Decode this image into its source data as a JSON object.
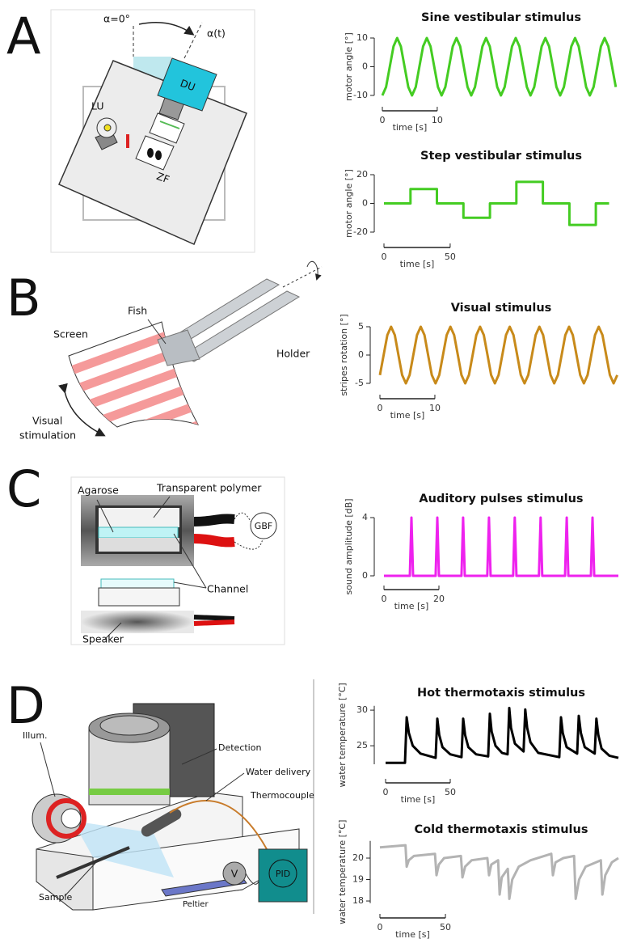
{
  "panel_labels": [
    "A",
    "B",
    "C",
    "D"
  ],
  "diagrams": {
    "a": {
      "angle_zero": "α=0°",
      "angle_t": "α(t)",
      "du": "DU",
      "lu": "LU",
      "zf": "ZF"
    },
    "b": {
      "fish": "Fish",
      "screen": "Screen",
      "holder": "Holder",
      "stimulation": [
        "Visual",
        "stimulation"
      ]
    },
    "c": {
      "agarose": "Agarose",
      "polymer": "Transparent polymer",
      "gbf": "GBF",
      "channel": "Channel",
      "speaker": "Speaker"
    },
    "d": {
      "illum": "Illum.",
      "detection": "Detection",
      "water": "Water delivery",
      "thermocouple": "Thermocouple",
      "pid": "PID",
      "v": "V",
      "sample": "Sample",
      "peltier": "Peltier"
    }
  },
  "chart_data": [
    {
      "type": "line",
      "title": "Sine vestibular stimulus",
      "ylabel": "motor angle [°]",
      "xlabel": "time [s]",
      "color": "#44cc22",
      "x": [
        0,
        0.675,
        1.35,
        2.025,
        2.7,
        3.375,
        4.05,
        4.725,
        5.4,
        6.075,
        6.75,
        7.425,
        8.1,
        8.775,
        9.45,
        10.125,
        10.8,
        11.475,
        12.15,
        12.825,
        13.5,
        14.175,
        14.85,
        15.525,
        16.2,
        16.875,
        17.55,
        18.225,
        18.9,
        19.575,
        20.25,
        20.925,
        21.6,
        22.275,
        22.95,
        23.625,
        24.3,
        24.975,
        25.65,
        26.325,
        27,
        27.675,
        28.35,
        29.025,
        29.7,
        30.375,
        31.05,
        31.725,
        32.4,
        33.075,
        33.75,
        34.425,
        35.1,
        35.775,
        36.45,
        37.125,
        37.8,
        38.475,
        39.15,
        39.825,
        40.5,
        41.175,
        41.85,
        42.525
      ],
      "values": [
        -10,
        -7.07,
        0,
        7.07,
        10,
        7.07,
        0,
        -7.07,
        -10,
        -7.07,
        0,
        7.07,
        10,
        7.07,
        0,
        -7.07,
        -10,
        -7.07,
        0,
        7.07,
        10,
        7.07,
        0,
        -7.07,
        -10,
        -7.07,
        0,
        7.07,
        10,
        7.07,
        0,
        -7.07,
        -10,
        -7.07,
        0,
        7.07,
        10,
        7.07,
        0,
        -7.07,
        -10,
        -7.07,
        0,
        7.07,
        10,
        7.07,
        0,
        -7.07,
        -10,
        -7.07,
        0,
        7.07,
        10,
        7.07,
        0,
        -7.07,
        -10,
        -7.07,
        0,
        7.07,
        10,
        7.07,
        0,
        -7.07
      ],
      "xlim": [
        0,
        43
      ],
      "ylim": [
        -10,
        10
      ],
      "yticks": [
        -10,
        0,
        10
      ],
      "xticks": [
        0,
        10
      ]
    },
    {
      "type": "step",
      "title": "Step vestibular stimulus",
      "ylabel": "motor angle [°]",
      "xlabel": "time [s]",
      "color": "#44cc22",
      "x": [
        0,
        20,
        40,
        60,
        80,
        100,
        120,
        140,
        160,
        170
      ],
      "values": [
        0,
        10,
        0,
        -10,
        0,
        15,
        0,
        -15,
        0,
        0
      ],
      "xlim": [
        0,
        177
      ],
      "ylim": [
        -20,
        20
      ],
      "yticks": [
        -20,
        0,
        20
      ],
      "xticks": [
        0,
        50
      ]
    },
    {
      "type": "line",
      "title": "Visual stimulus",
      "ylabel": "stripes rotation [°]",
      "xlabel": "time [s]",
      "color": "#c88a1a",
      "x": [
        0,
        0.675,
        1.35,
        2.025,
        2.7,
        3.375,
        4.05,
        4.725,
        5.4,
        6.075,
        6.75,
        7.425,
        8.1,
        8.775,
        9.45,
        10.125,
        10.8,
        11.475,
        12.15,
        12.825,
        13.5,
        14.175,
        14.85,
        15.525,
        16.2,
        16.875,
        17.55,
        18.225,
        18.9,
        19.575,
        20.25,
        20.925,
        21.6,
        22.275,
        22.95,
        23.625,
        24.3,
        24.975,
        25.65,
        26.325,
        27,
        27.675,
        28.35,
        29.025,
        29.7,
        30.375,
        31.05,
        31.725,
        32.4,
        33.075,
        33.75,
        34.425,
        35.1,
        35.775,
        36.45,
        37.125,
        37.8,
        38.475,
        39.15,
        39.825,
        40.5,
        41.175,
        41.85,
        42.525,
        43.2
      ],
      "values": [
        -3.54,
        0,
        3.54,
        5,
        3.54,
        0,
        -3.54,
        -5,
        -3.54,
        0,
        3.54,
        5,
        3.54,
        0,
        -3.54,
        -5,
        -3.54,
        0,
        3.54,
        5,
        3.54,
        0,
        -3.54,
        -5,
        -3.54,
        0,
        3.54,
        5,
        3.54,
        0,
        -3.54,
        -5,
        -3.54,
        0,
        3.54,
        5,
        3.54,
        0,
        -3.54,
        -5,
        -3.54,
        0,
        3.54,
        5,
        3.54,
        0,
        -3.54,
        -5,
        -3.54,
        0,
        3.54,
        5,
        3.54,
        0,
        -3.54,
        -5,
        -3.54,
        0,
        3.54,
        5,
        3.54,
        0,
        -3.54,
        -5,
        -3.54
      ],
      "xlim": [
        0,
        43.4
      ],
      "ylim": [
        -5,
        5
      ],
      "yticks": [
        -5,
        0,
        5
      ],
      "xticks": [
        0,
        10
      ]
    },
    {
      "type": "line",
      "title": "Auditory pulses stimulus",
      "ylabel": "sound amplitude [dB]",
      "xlabel": "time [s]",
      "color": "#ee22ee",
      "x": [
        0,
        9.4,
        10,
        10.6,
        18.8,
        19.4,
        20,
        28.2,
        28.8,
        29.4,
        37.6,
        38.2,
        38.8,
        47,
        47.6,
        48.2,
        56.4,
        57,
        57.6,
        65.9,
        66.5,
        67.1,
        75.3,
        75.9,
        76.5,
        85.3
      ],
      "values": [
        0,
        0,
        4,
        0,
        0,
        4,
        0,
        0,
        4,
        0,
        0,
        4,
        0,
        0,
        4,
        0,
        0,
        4,
        0,
        0,
        4,
        0,
        0,
        4,
        0,
        0
      ],
      "xlim": [
        0,
        85.3
      ],
      "ylim": [
        0,
        4
      ],
      "yticks": [
        0,
        4
      ],
      "xticks": [
        0,
        20
      ]
    },
    {
      "type": "line",
      "title": "Hot thermotaxis stimulus",
      "ylabel": "water temperature [°C]",
      "xlabel": "time [s]",
      "color": "#000000",
      "x": [
        0,
        15,
        16.3,
        18,
        21,
        27,
        38.7,
        40,
        41.5,
        44,
        50,
        58.7,
        60,
        61.5,
        64,
        70,
        79.3,
        80.6,
        82,
        85,
        90,
        94.3,
        95.6,
        97,
        100,
        106.7,
        108,
        109.5,
        112,
        118,
        134.3,
        135.6,
        137,
        140,
        148.1,
        149.4,
        151,
        154,
        161.7,
        163,
        164.5,
        167,
        173,
        180
      ],
      "values": [
        22.6,
        22.6,
        29,
        26.8,
        25,
        23.9,
        23.3,
        28.8,
        26.5,
        24.8,
        23.8,
        23.4,
        28.8,
        26.5,
        24.8,
        23.8,
        23.5,
        29.5,
        27,
        25,
        24,
        23.8,
        30.3,
        27.5,
        25.3,
        24.2,
        30.1,
        27.5,
        25.5,
        24,
        23.4,
        29,
        26.8,
        24.8,
        23.9,
        29.2,
        26.8,
        24.8,
        23.9,
        28.8,
        26.5,
        24.6,
        23.6,
        23.3
      ],
      "xlim": [
        0,
        180
      ],
      "ylim": [
        22.4,
        30.6
      ],
      "yticks": [
        25,
        30
      ],
      "xticks": [
        0,
        50
      ]
    },
    {
      "type": "line",
      "title": "Cold thermotaxis stimulus",
      "ylabel": "water temperature [°C]",
      "xlabel": "time [s]",
      "color": "#b3b3b3",
      "x": [
        0,
        19.5,
        20.4,
        22,
        26,
        42,
        43.2,
        45,
        49,
        61.8,
        63,
        65,
        70,
        82,
        83.3,
        85,
        90.2,
        91.4,
        93,
        97.6,
        98.8,
        101,
        106,
        115,
        130.8,
        132,
        134,
        140,
        148.2,
        149.4,
        152,
        157,
        168.6,
        169.8,
        172,
        177,
        182
      ],
      "values": [
        20.5,
        20.6,
        19.6,
        19.9,
        20.1,
        20.2,
        19.2,
        19.7,
        20,
        20.1,
        19.1,
        19.6,
        19.9,
        20,
        19.2,
        19.7,
        19.9,
        18.3,
        19.1,
        19.5,
        18.1,
        19,
        19.6,
        19.9,
        20.2,
        19.2,
        19.8,
        20,
        20.1,
        18.1,
        19,
        19.6,
        19.9,
        18.3,
        19.2,
        19.8,
        20
      ],
      "xlim": [
        0,
        182
      ],
      "ylim": [
        17.9,
        20.8
      ],
      "yticks": [
        18,
        19,
        20
      ],
      "xticks": [
        0,
        50
      ]
    }
  ]
}
